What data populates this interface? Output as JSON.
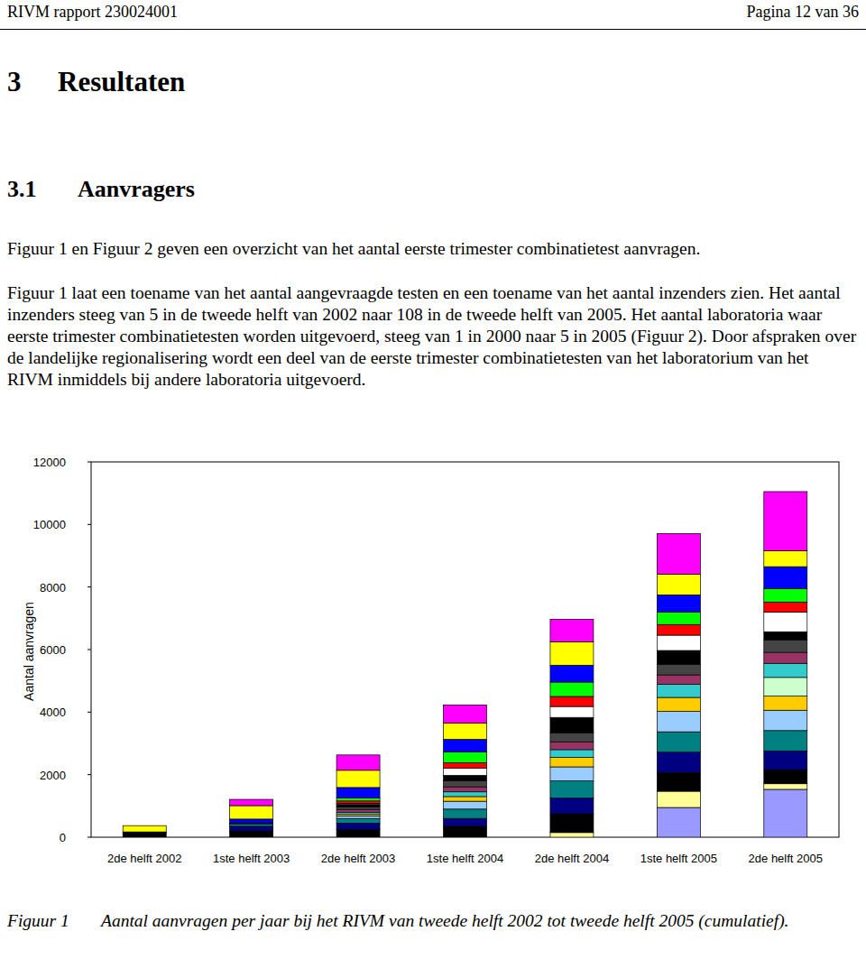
{
  "header": {
    "left": "RIVM rapport 230024001",
    "right": "Pagina 12 van 36"
  },
  "headings": [
    {
      "number": "3",
      "text": "Resultaten"
    },
    {
      "number": "3.1",
      "text": "Aanvragers"
    }
  ],
  "paragraphs": [
    "Figuur 1 en Figuur 2 geven een overzicht van het aantal eerste trimester combinatietest aanvragen.",
    "Figuur 1 laat een toename van het aantal aangevraagde testen en een toename van het aantal inzenders zien. Het aantal inzenders steeg van 5 in de tweede helft van 2002 naar 108 in de tweede helft van 2005. Het aantal laboratoria waar eerste trimester combinatietesten worden uitgevoerd, steeg van 1 in 2000 naar 5 in 2005 (Figuur 2). Door afspraken over de landelijke regionalisering wordt een deel van de eerste trimester combinatietesten van het laboratorium van het RIVM inmiddels bij andere laboratoria uitgevoerd."
  ],
  "chart_data": {
    "type": "bar",
    "stacked": true,
    "grid": false,
    "y_label": "Aantal aanvragen",
    "categories": [
      "2de helft 2002",
      "1ste helft 2003",
      "2de helft 2003",
      "1ste helft 2004",
      "2de helft 2004",
      "1ste helft 2005",
      "2de helft 2005"
    ],
    "ylim": [
      0,
      12000
    ],
    "yticks": [
      0,
      2000,
      4000,
      6000,
      8000,
      10000,
      12000
    ],
    "series": [
      {
        "color": "#9999ff",
        "values": [
          0,
          0,
          0,
          0,
          0,
          950,
          1530
        ]
      },
      {
        "color": "#ffff99",
        "values": [
          0,
          0,
          0,
          0,
          150,
          520,
          180
        ]
      },
      {
        "color": "#000000",
        "values": [
          120,
          200,
          250,
          350,
          600,
          600,
          450
        ]
      },
      {
        "color": "#000080",
        "values": [
          30,
          150,
          200,
          250,
          500,
          650,
          600
        ]
      },
      {
        "color": "#008080",
        "values": [
          0,
          80,
          150,
          300,
          550,
          650,
          650
        ]
      },
      {
        "color": "#99ccff",
        "values": [
          0,
          0,
          80,
          250,
          450,
          650,
          650
        ]
      },
      {
        "color": "#ffcc00",
        "values": [
          0,
          0,
          50,
          150,
          300,
          450,
          450
        ]
      },
      {
        "color": "#ccffcc",
        "values": [
          0,
          0,
          0,
          0,
          0,
          0,
          600
        ]
      },
      {
        "color": "#33cccc",
        "values": [
          0,
          0,
          60,
          150,
          250,
          420,
          450
        ]
      },
      {
        "color": "#993366",
        "values": [
          20,
          30,
          100,
          160,
          250,
          300,
          350
        ]
      },
      {
        "color": "#444444",
        "values": [
          0,
          0,
          80,
          200,
          290,
          340,
          400
        ]
      },
      {
        "color": "#000000",
        "values": [
          0,
          0,
          80,
          170,
          490,
          440,
          260
        ]
      },
      {
        "color": "#ffffff",
        "values": [
          0,
          0,
          30,
          230,
          350,
          490,
          630
        ]
      },
      {
        "color": "#ff0000",
        "values": [
          0,
          0,
          80,
          170,
          320,
          340,
          320
        ]
      },
      {
        "color": "#00ff00",
        "values": [
          0,
          0,
          90,
          350,
          460,
          400,
          430
        ]
      },
      {
        "color": "#0000ff",
        "values": [
          0,
          120,
          340,
          400,
          540,
          550,
          700
        ]
      },
      {
        "color": "#ffff00",
        "values": [
          200,
          430,
          550,
          520,
          750,
          660,
          510
        ]
      },
      {
        "color": "#ff00ff",
        "values": [
          0,
          200,
          490,
          580,
          720,
          1300,
          1890
        ]
      }
    ]
  },
  "caption": {
    "label": "Figuur 1",
    "text": "Aantal aanvragen per jaar bij het RIVM van tweede helft 2002 tot tweede helft 2005 (cumulatief)."
  }
}
